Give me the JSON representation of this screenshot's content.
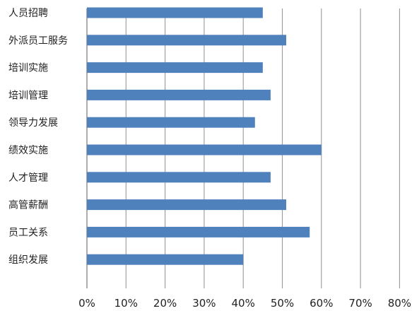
{
  "chart_data": {
    "type": "bar",
    "orientation": "horizontal",
    "categories": [
      "人员招聘",
      "外派员工服务",
      "培训实施",
      "培训管理",
      "领导力发展",
      "绩效实施",
      "人才管理",
      "高管薪酬",
      "员工关系",
      "组织发展"
    ],
    "values": [
      45,
      51,
      45,
      47,
      43,
      60,
      47,
      51,
      57,
      40
    ],
    "xlim": [
      0,
      80
    ],
    "xticks": [
      0,
      10,
      20,
      30,
      40,
      50,
      60,
      70,
      80
    ],
    "xtick_labels": [
      "0%",
      "10%",
      "20%",
      "30%",
      "40%",
      "50%",
      "60%",
      "70%",
      "80%"
    ],
    "title": "",
    "xlabel": "",
    "ylabel": "",
    "grid": "vertical",
    "legend": "none",
    "bar_color": "#4f81bd",
    "grid_color": "#9a9a9a"
  }
}
